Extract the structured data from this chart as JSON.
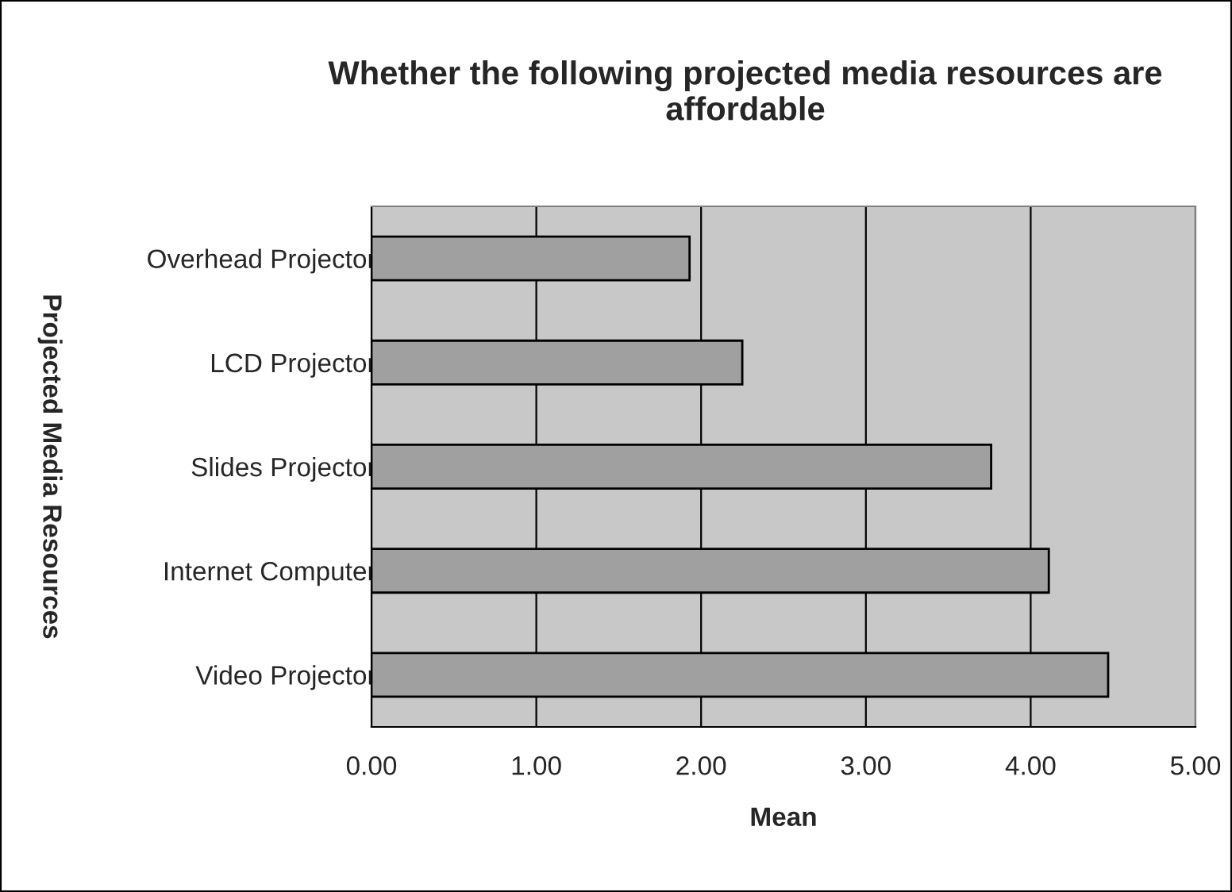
{
  "chart_data": {
    "type": "bar",
    "orientation": "horizontal",
    "title": "Whether the following projected media resources are affordable",
    "xlabel": "Mean",
    "ylabel": "Projected Media Resources",
    "categories": [
      "Overhead Projector",
      "LCD Projector",
      "Slides Projector",
      "Internet Computer",
      "Video Projector"
    ],
    "values": [
      1.93,
      2.25,
      3.76,
      4.11,
      4.47
    ],
    "color": "#a0a0a0",
    "xlim": [
      0,
      5
    ],
    "xticks": [
      {
        "value": 0,
        "label": "0.00"
      },
      {
        "value": 1,
        "label": "1.00"
      },
      {
        "value": 2,
        "label": "2.00"
      },
      {
        "value": 3,
        "label": "3.00"
      },
      {
        "value": 4,
        "label": "4.00"
      },
      {
        "value": 5,
        "label": "5.00"
      }
    ],
    "grid": "x"
  }
}
